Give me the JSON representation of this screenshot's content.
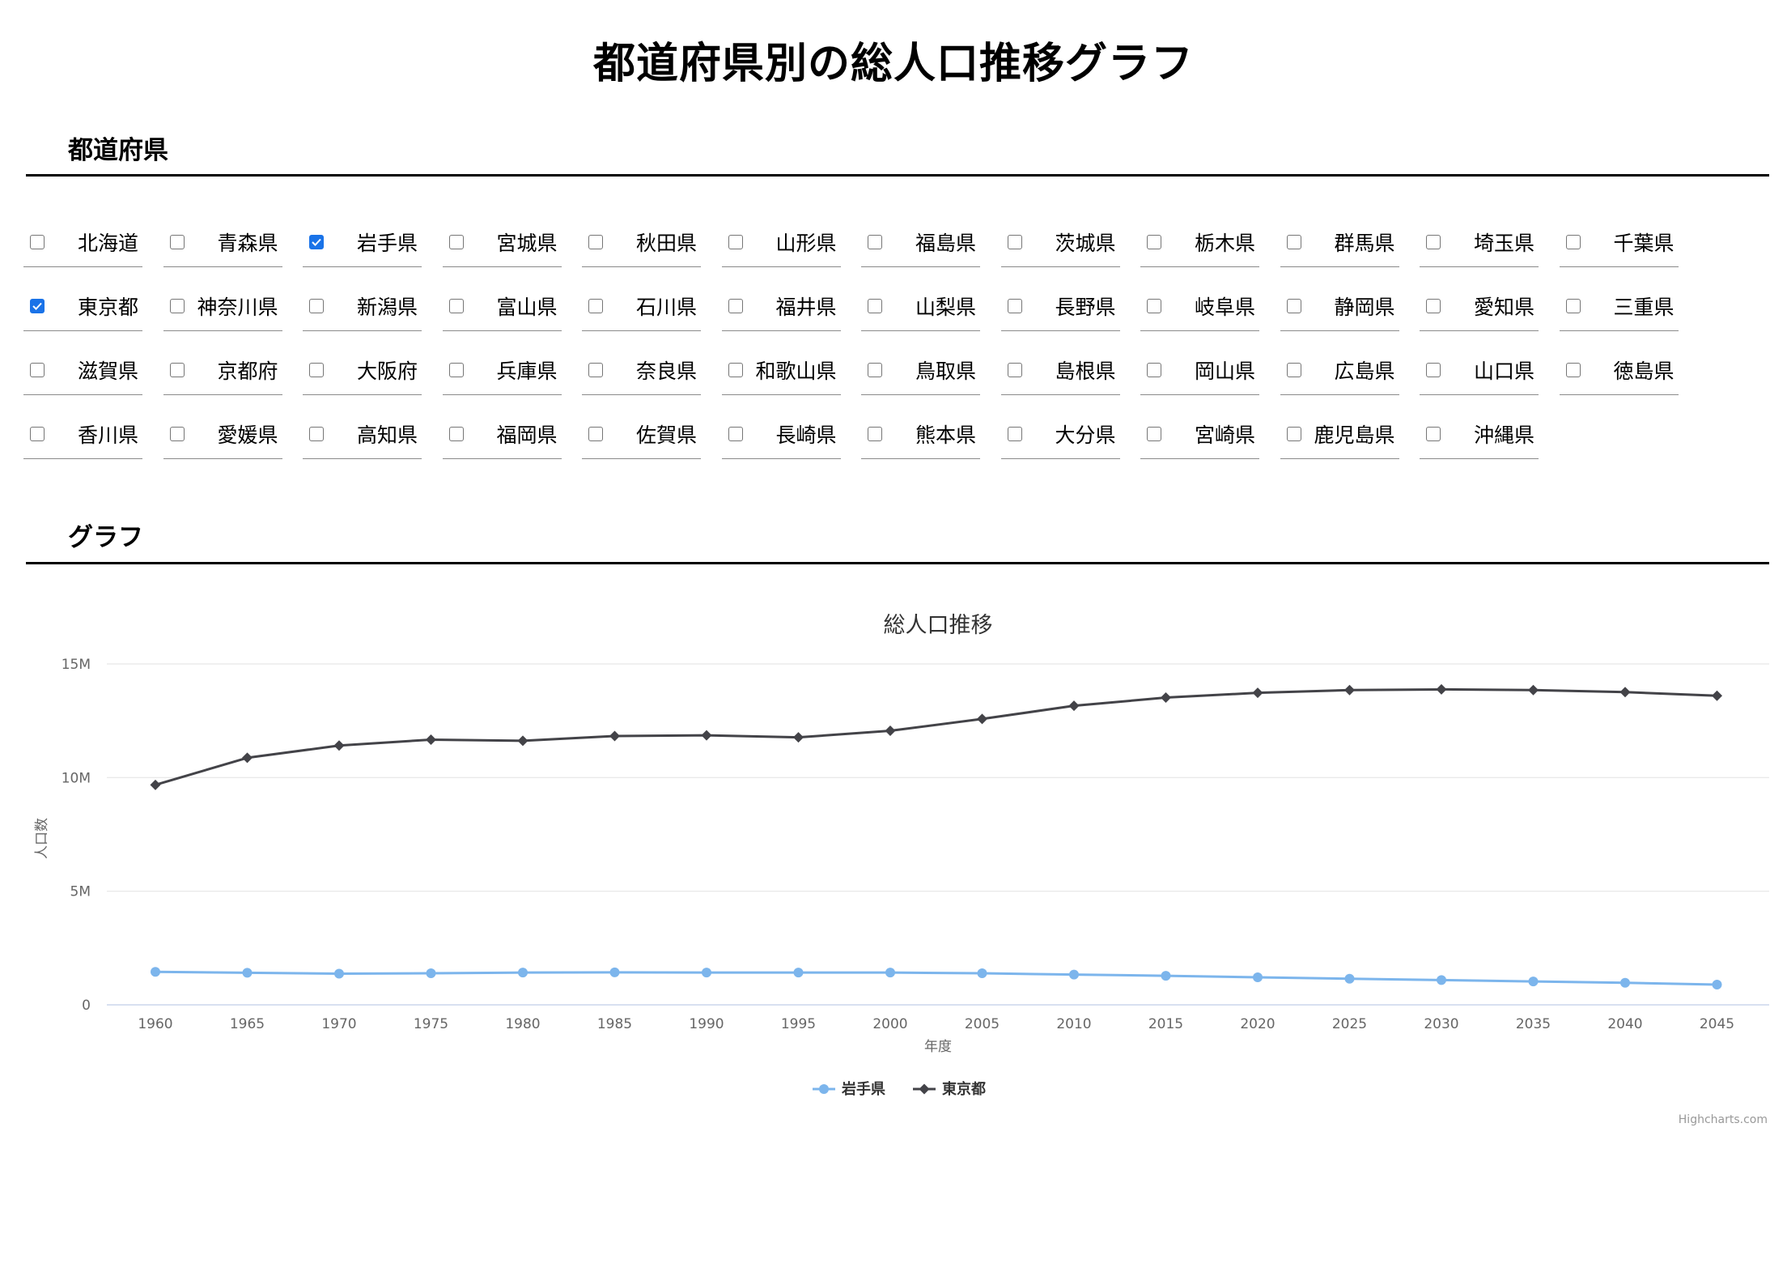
{
  "page": {
    "title": "都道府県別の総人口推移グラフ",
    "prefecture_heading": "都道府県",
    "graph_heading": "グラフ"
  },
  "prefectures": [
    {
      "name": "北海道",
      "checked": false
    },
    {
      "name": "青森県",
      "checked": false
    },
    {
      "name": "岩手県",
      "checked": true
    },
    {
      "name": "宮城県",
      "checked": false
    },
    {
      "name": "秋田県",
      "checked": false
    },
    {
      "name": "山形県",
      "checked": false
    },
    {
      "name": "福島県",
      "checked": false
    },
    {
      "name": "茨城県",
      "checked": false
    },
    {
      "name": "栃木県",
      "checked": false
    },
    {
      "name": "群馬県",
      "checked": false
    },
    {
      "name": "埼玉県",
      "checked": false
    },
    {
      "name": "千葉県",
      "checked": false
    },
    {
      "name": "東京都",
      "checked": true
    },
    {
      "name": "神奈川県",
      "checked": false
    },
    {
      "name": "新潟県",
      "checked": false
    },
    {
      "name": "富山県",
      "checked": false
    },
    {
      "name": "石川県",
      "checked": false
    },
    {
      "name": "福井県",
      "checked": false
    },
    {
      "name": "山梨県",
      "checked": false
    },
    {
      "name": "長野県",
      "checked": false
    },
    {
      "name": "岐阜県",
      "checked": false
    },
    {
      "name": "静岡県",
      "checked": false
    },
    {
      "name": "愛知県",
      "checked": false
    },
    {
      "name": "三重県",
      "checked": false
    },
    {
      "name": "滋賀県",
      "checked": false
    },
    {
      "name": "京都府",
      "checked": false
    },
    {
      "name": "大阪府",
      "checked": false
    },
    {
      "name": "兵庫県",
      "checked": false
    },
    {
      "name": "奈良県",
      "checked": false
    },
    {
      "name": "和歌山県",
      "checked": false
    },
    {
      "name": "鳥取県",
      "checked": false
    },
    {
      "name": "島根県",
      "checked": false
    },
    {
      "name": "岡山県",
      "checked": false
    },
    {
      "name": "広島県",
      "checked": false
    },
    {
      "name": "山口県",
      "checked": false
    },
    {
      "name": "徳島県",
      "checked": false
    },
    {
      "name": "香川県",
      "checked": false
    },
    {
      "name": "愛媛県",
      "checked": false
    },
    {
      "name": "高知県",
      "checked": false
    },
    {
      "name": "福岡県",
      "checked": false
    },
    {
      "name": "佐賀県",
      "checked": false
    },
    {
      "name": "長崎県",
      "checked": false
    },
    {
      "name": "熊本県",
      "checked": false
    },
    {
      "name": "大分県",
      "checked": false
    },
    {
      "name": "宮崎県",
      "checked": false
    },
    {
      "name": "鹿児島県",
      "checked": false
    },
    {
      "name": "沖縄県",
      "checked": false
    }
  ],
  "chart_credit": "Highcharts.com",
  "colors": {
    "checkbox_checked": "#1a73e8",
    "series_iwate": "#7cb5ec",
    "series_tokyo": "#434348",
    "gridline": "#e6e6e6",
    "axis_text": "#666666",
    "chart_title": "#333333"
  },
  "chart_data": {
    "type": "line",
    "title": "総人口推移",
    "xlabel": "年度",
    "ylabel": "人口数",
    "x": [
      1960,
      1965,
      1970,
      1975,
      1980,
      1985,
      1990,
      1995,
      2000,
      2005,
      2010,
      2015,
      2020,
      2025,
      2030,
      2035,
      2040,
      2045
    ],
    "y_ticks": [
      0,
      5000000,
      10000000,
      15000000
    ],
    "y_tick_labels": [
      "0",
      "5M",
      "10M",
      "15M"
    ],
    "ylim": [
      0,
      15000000
    ],
    "grid": true,
    "legend_position": "bottom-center",
    "series": [
      {
        "name": "岩手県",
        "marker": "circle",
        "values": [
          1450000,
          1410000,
          1370000,
          1390000,
          1420000,
          1430000,
          1420000,
          1420000,
          1420000,
          1390000,
          1330000,
          1280000,
          1210000,
          1150000,
          1090000,
          1030000,
          970000,
          890000
        ]
      },
      {
        "name": "東京都",
        "marker": "diamond",
        "values": [
          9680000,
          10870000,
          11410000,
          11670000,
          11620000,
          11830000,
          11860000,
          11770000,
          12060000,
          12580000,
          13160000,
          13520000,
          13730000,
          13850000,
          13880000,
          13850000,
          13760000,
          13600000
        ]
      }
    ]
  }
}
